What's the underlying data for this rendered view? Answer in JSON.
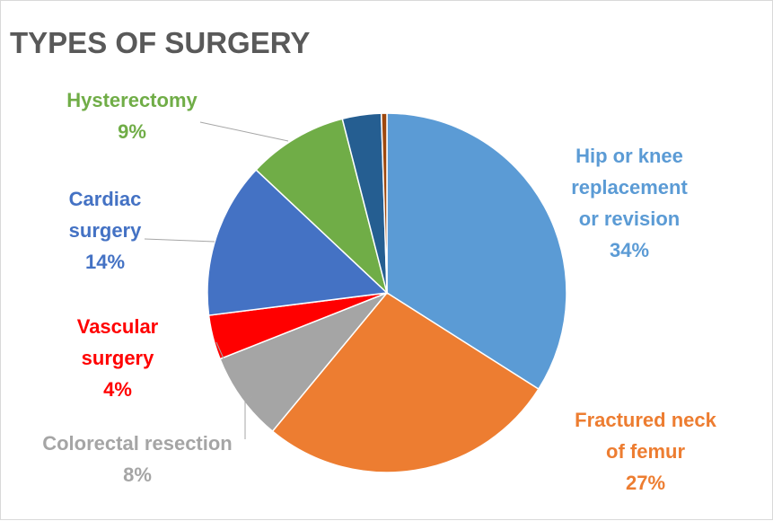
{
  "chart_data": {
    "type": "pie",
    "title": "TYPES OF SURGERY",
    "slices": [
      {
        "name": "Hip or knee replacement or revision",
        "label_lines": [
          "Hip or knee",
          "replacement",
          "or revision"
        ],
        "pct_label": "34%",
        "value": 34,
        "color": "#5B9BD5"
      },
      {
        "name": "Fractured neck of femur",
        "label_lines": [
          "Fractured neck",
          "of femur"
        ],
        "pct_label": "27%",
        "value": 27,
        "color": "#ED7D31"
      },
      {
        "name": "Colorectal resection",
        "label_lines": [
          "Colorectal resection"
        ],
        "pct_label": "8%",
        "value": 8,
        "color": "#A5A5A5",
        "label_color": "#A5A5A5"
      },
      {
        "name": "Vascular surgery",
        "label_lines": [
          "Vascular",
          "surgery"
        ],
        "pct_label": "4%",
        "value": 4,
        "color": "#FF0000"
      },
      {
        "name": "Cardiac surgery",
        "label_lines": [
          "Cardiac",
          "surgery"
        ],
        "pct_label": "14%",
        "value": 14,
        "color": "#4472C4"
      },
      {
        "name": "Hysterectomy",
        "label_lines": [
          "Hysterectomy"
        ],
        "pct_label": "9%",
        "value": 9,
        "color": "#70AD47"
      },
      {
        "name": "",
        "label_lines": [],
        "pct_label": "",
        "value": 3.5,
        "color": "#255E91"
      },
      {
        "name": "",
        "label_lines": [],
        "pct_label": "",
        "value": 0.5,
        "color": "#9E480E"
      }
    ],
    "legend": "none"
  }
}
